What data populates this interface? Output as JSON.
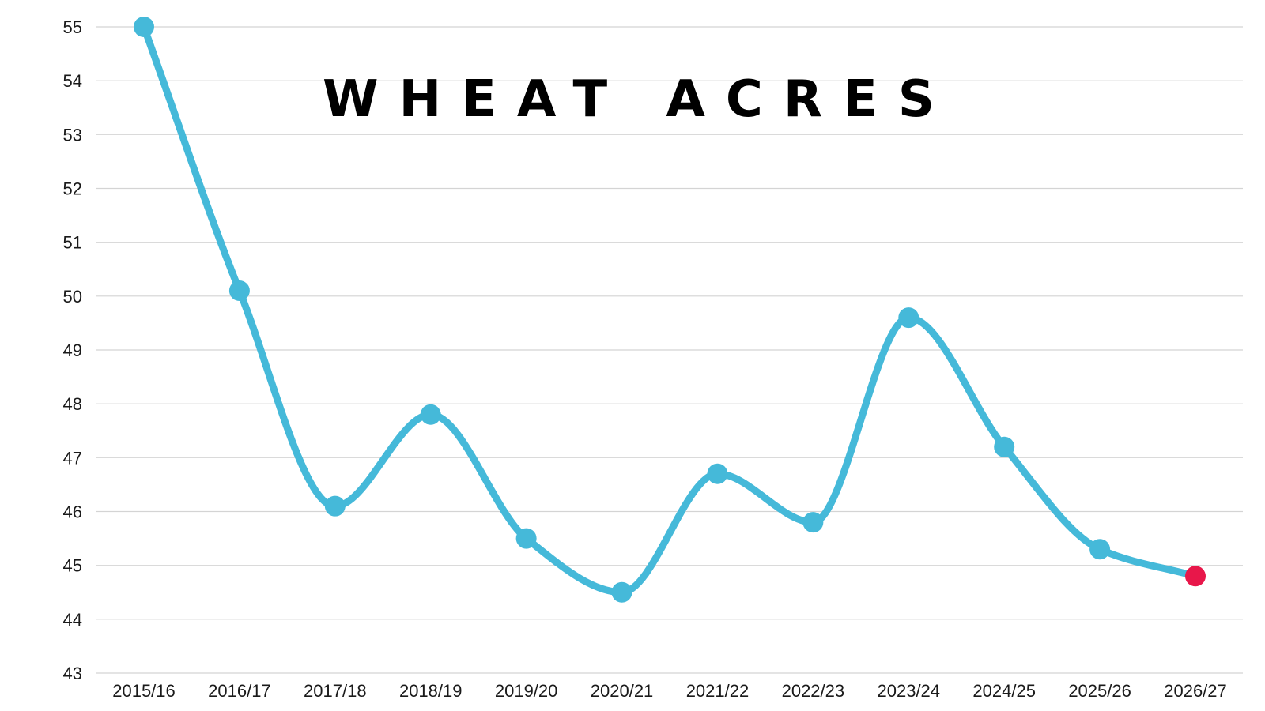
{
  "colors": {
    "line": "#45b9d9",
    "highlight": "#e8174a",
    "grid": "#d4d4d4",
    "text": "#1a1a1a"
  },
  "chart_data": {
    "type": "line",
    "title": "WHEAT ACRES",
    "xlabel": "",
    "ylabel": "",
    "categories": [
      "2015/16",
      "2016/17",
      "2017/18",
      "2018/19",
      "2019/20",
      "2020/21",
      "2021/22",
      "2022/23",
      "2023/24",
      "2024/25",
      "2025/26",
      "2026/27"
    ],
    "series": [
      {
        "values": [
          55.0,
          50.1,
          46.1,
          47.8,
          45.5,
          44.5,
          46.7,
          45.8,
          49.6,
          47.2,
          45.3,
          44.8
        ]
      }
    ],
    "highlighted_point": "2026/27",
    "ylim": [
      43,
      55
    ],
    "yticks": [
      43,
      44,
      45,
      46,
      47,
      48,
      49,
      50,
      51,
      52,
      53,
      54,
      55
    ],
    "grid": true,
    "legend": "none",
    "smooth": true
  }
}
